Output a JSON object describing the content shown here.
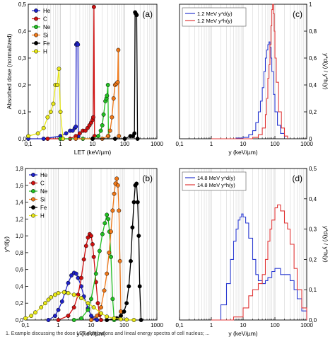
{
  "caption_fragment": "1. Example discussing the dose LET distributions and lineal energy spectra of cell nucleus; ...",
  "chart_data": [
    {
      "panel": "(a)",
      "type": "line",
      "xscale": "log",
      "xlim": [
        0.1,
        1000
      ],
      "ylim": [
        0,
        0.5
      ],
      "xticks": [
        "0,1",
        "1",
        "10",
        "100",
        "1000"
      ],
      "yticks": [
        "0,0",
        "0,1",
        "0,2",
        "0,3",
        "0,4",
        "0,5"
      ],
      "xlabel": "LET (keV/µm)",
      "ylabel": "Absorbed dose (normalized)",
      "legend_position": "top-left",
      "series": [
        {
          "name": "He",
          "color": "#1f22c8",
          "marker": "circle",
          "x": [
            0.1,
            0.3,
            1,
            1.5,
            2.0,
            2.4,
            2.8,
            3.0,
            3.1,
            3.3,
            3.5,
            3.6
          ],
          "y": [
            0.0,
            0.0,
            0.01,
            0.02,
            0.03,
            0.03,
            0.04,
            0.045,
            0.35,
            0.355,
            0.35,
            0.01
          ]
        },
        {
          "name": "C",
          "color": "#d01010",
          "marker": "circle",
          "x": [
            0.4,
            1,
            2,
            3,
            4,
            5,
            6,
            7,
            8,
            9,
            10,
            10.5,
            11,
            11.5
          ],
          "y": [
            0.0,
            0.0,
            0.0,
            0.01,
            0.02,
            0.03,
            0.03,
            0.04,
            0.05,
            0.06,
            0.07,
            0.08,
            0.49,
            0.01
          ]
        },
        {
          "name": "Ne",
          "color": "#22c022",
          "marker": "circle",
          "x": [
            1,
            5,
            10,
            15,
            18,
            20,
            22,
            25,
            27,
            28,
            30,
            31
          ],
          "y": [
            0.0,
            0.0,
            0.0,
            0.01,
            0.03,
            0.05,
            0.09,
            0.14,
            0.15,
            0.16,
            0.2,
            0.01
          ]
        },
        {
          "name": "Si",
          "color": "#f07818",
          "marker": "circle",
          "x": [
            3,
            10,
            20,
            30,
            35,
            40,
            45,
            50,
            55,
            60,
            63,
            66
          ],
          "y": [
            0.0,
            0.0,
            0.0,
            0.01,
            0.03,
            0.08,
            0.15,
            0.2,
            0.205,
            0.21,
            0.33,
            0.01
          ]
        },
        {
          "name": "Fe",
          "color": "#000000",
          "marker": "circle",
          "x": [
            10,
            50,
            100,
            150,
            180,
            200,
            210,
            220,
            235,
            250
          ],
          "y": [
            0.0,
            0.0,
            0.0,
            0.01,
            0.01,
            0.02,
            0.47,
            0.465,
            0.46,
            0.0
          ]
        },
        {
          "name": "H",
          "color": "#e8e818",
          "marker": "circle",
          "x": [
            0.1,
            0.2,
            0.3,
            0.4,
            0.5,
            0.6,
            0.7,
            0.8,
            0.9,
            1.0,
            1.2
          ],
          "y": [
            0.01,
            0.02,
            0.04,
            0.08,
            0.1,
            0.13,
            0.2,
            0.2,
            0.26,
            0.1,
            0.0
          ]
        }
      ]
    },
    {
      "panel": "(c)",
      "type": "line",
      "xscale": "log",
      "xlim": [
        0.1,
        1000
      ],
      "ylim": [
        0,
        1.0
      ],
      "xticks": [
        "0,1",
        "1",
        "10",
        "100",
        "1000"
      ],
      "yticks": [
        "0",
        "0,2",
        "0,4",
        "0,6",
        "0,8",
        "1"
      ],
      "xlabel": "y (keV/µm)",
      "ylabel": "y*d(y) / y*h(y)",
      "legend_position": "top-left",
      "series": [
        {
          "name": "1.2 MeV y*d(y)",
          "color": "#2a3ad0",
          "x": [
            1,
            3,
            6,
            10,
            15,
            20,
            25,
            30,
            35,
            40,
            45,
            50,
            55,
            60,
            65,
            70,
            75,
            80,
            90,
            100,
            120,
            150,
            200
          ],
          "y": [
            0.0,
            0.0,
            0.005,
            0.01,
            0.03,
            0.06,
            0.12,
            0.2,
            0.28,
            0.38,
            0.5,
            0.6,
            0.66,
            0.7,
            0.72,
            0.68,
            0.6,
            0.5,
            0.33,
            0.2,
            0.1,
            0.04,
            0.01
          ]
        },
        {
          "name": "1.2 MeV y*h(y)",
          "color": "#e03838",
          "x": [
            1,
            5,
            10,
            20,
            30,
            40,
            50,
            55,
            60,
            65,
            70,
            75,
            80,
            85,
            90,
            95,
            100,
            110,
            130,
            160,
            200,
            250
          ],
          "y": [
            0.0,
            0.0,
            0.0,
            0.01,
            0.03,
            0.08,
            0.18,
            0.3,
            0.45,
            0.55,
            0.7,
            0.84,
            0.96,
            1.0,
            0.93,
            0.8,
            0.6,
            0.42,
            0.2,
            0.08,
            0.02,
            0.0
          ]
        }
      ]
    },
    {
      "panel": "(b)",
      "type": "line",
      "xscale": "log",
      "xlim": [
        0.1,
        1000
      ],
      "ylim": [
        0,
        1.8
      ],
      "xticks": [
        "0,1",
        "1",
        "10",
        "100",
        "1000"
      ],
      "yticks": [
        "0,0",
        "0,2",
        "0,4",
        "0,6",
        "0,8",
        "1,0",
        "1,2",
        "1,4",
        "1,6",
        "1,8"
      ],
      "xlabel": "y (keV/µm)",
      "ylabel": "y*d(y)",
      "legend_position": "top-left",
      "series": [
        {
          "name": "He",
          "color": "#1f22c8",
          "marker": "circle",
          "x": [
            0.5,
            0.8,
            1.0,
            1.3,
            1.6,
            2.0,
            2.5,
            3.0,
            3.5,
            4.0,
            5.0,
            6.0,
            8.0,
            10,
            12,
            15
          ],
          "y": [
            0.0,
            0.05,
            0.12,
            0.22,
            0.33,
            0.44,
            0.53,
            0.56,
            0.55,
            0.5,
            0.4,
            0.28,
            0.14,
            0.05,
            0.02,
            0.0
          ]
        },
        {
          "name": "C",
          "color": "#d01010",
          "marker": "circle",
          "x": [
            1,
            2,
            3,
            4,
            5,
            6,
            7,
            8,
            9,
            10,
            11,
            12,
            14,
            16,
            18,
            20
          ],
          "y": [
            0.0,
            0.05,
            0.15,
            0.3,
            0.5,
            0.72,
            0.88,
            0.98,
            1.02,
            1.0,
            0.9,
            0.75,
            0.45,
            0.2,
            0.06,
            0.0
          ]
        },
        {
          "name": "Ne",
          "color": "#22c022",
          "marker": "circle",
          "x": [
            3,
            5,
            8,
            10,
            14,
            18,
            22,
            26,
            30,
            33,
            36,
            40,
            45,
            50
          ],
          "y": [
            0.0,
            0.02,
            0.12,
            0.25,
            0.55,
            0.82,
            1.02,
            1.15,
            1.25,
            1.2,
            1.05,
            0.75,
            0.25,
            0.0
          ]
        },
        {
          "name": "Si",
          "color": "#f07818",
          "marker": "circle",
          "x": [
            10,
            15,
            20,
            25,
            30,
            35,
            40,
            45,
            50,
            55,
            60,
            65,
            70,
            75,
            80
          ],
          "y": [
            0.0,
            0.05,
            0.15,
            0.35,
            0.55,
            0.8,
            1.05,
            1.3,
            1.5,
            1.62,
            1.68,
            1.6,
            1.3,
            0.7,
            0.1
          ]
        },
        {
          "name": "Fe",
          "color": "#000000",
          "marker": "circle",
          "x": [
            30,
            60,
            80,
            100,
            120,
            140,
            160,
            180,
            200,
            220,
            240,
            260,
            280,
            300,
            330
          ],
          "y": [
            0.0,
            0.02,
            0.05,
            0.1,
            0.2,
            0.4,
            0.7,
            1.1,
            1.4,
            1.6,
            1.62,
            1.4,
            1.0,
            0.4,
            0.0
          ]
        },
        {
          "name": "H",
          "color": "#e8e818",
          "marker": "circle",
          "x": [
            0.1,
            0.15,
            0.2,
            0.3,
            0.4,
            0.5,
            0.6,
            0.8,
            1.0,
            1.5,
            2,
            3,
            5,
            8,
            12,
            20,
            30,
            50,
            80,
            120,
            200
          ],
          "y": [
            0.02,
            0.05,
            0.09,
            0.15,
            0.2,
            0.24,
            0.27,
            0.3,
            0.32,
            0.33,
            0.32,
            0.3,
            0.26,
            0.2,
            0.15,
            0.08,
            0.04,
            0.02,
            0.01,
            0.005,
            0.0
          ]
        }
      ]
    },
    {
      "panel": "(d)",
      "type": "line",
      "xscale": "log",
      "xlim": [
        0.1,
        1000
      ],
      "ylim": [
        0,
        0.5
      ],
      "xticks": [
        "0,1",
        "1",
        "10",
        "100",
        "1000"
      ],
      "yticks": [
        "0,0",
        "0,1",
        "0,2",
        "0,3",
        "0,4",
        "0,5"
      ],
      "xlabel": "y (keV/µm)",
      "ylabel": "y*d(y) / y*h(y)",
      "legend_position": "top-left",
      "series": [
        {
          "name": "14.8 MeV y*d(y)",
          "color": "#2a3ad0",
          "x": [
            1,
            2,
            3,
            4,
            5,
            6,
            7,
            8,
            9,
            10,
            12,
            15,
            20,
            25,
            30,
            40,
            50,
            60,
            80,
            100,
            150,
            200,
            300,
            400,
            500,
            700,
            1000
          ],
          "y": [
            0.0,
            0.05,
            0.12,
            0.2,
            0.26,
            0.3,
            0.33,
            0.34,
            0.35,
            0.34,
            0.32,
            0.27,
            0.2,
            0.15,
            0.13,
            0.12,
            0.13,
            0.14,
            0.16,
            0.17,
            0.15,
            0.15,
            0.13,
            0.1,
            0.07,
            0.03,
            0.0
          ]
        },
        {
          "name": "14.8 MeV y*h(y)",
          "color": "#e03838",
          "x": [
            1,
            3,
            5,
            10,
            15,
            20,
            30,
            40,
            50,
            60,
            70,
            80,
            100,
            120,
            150,
            200,
            250,
            300,
            400,
            500,
            700,
            1000
          ],
          "y": [
            0.0,
            0.0,
            0.01,
            0.04,
            0.08,
            0.1,
            0.12,
            0.15,
            0.2,
            0.26,
            0.3,
            0.33,
            0.37,
            0.38,
            0.36,
            0.32,
            0.3,
            0.25,
            0.17,
            0.1,
            0.04,
            0.0
          ]
        }
      ]
    }
  ]
}
